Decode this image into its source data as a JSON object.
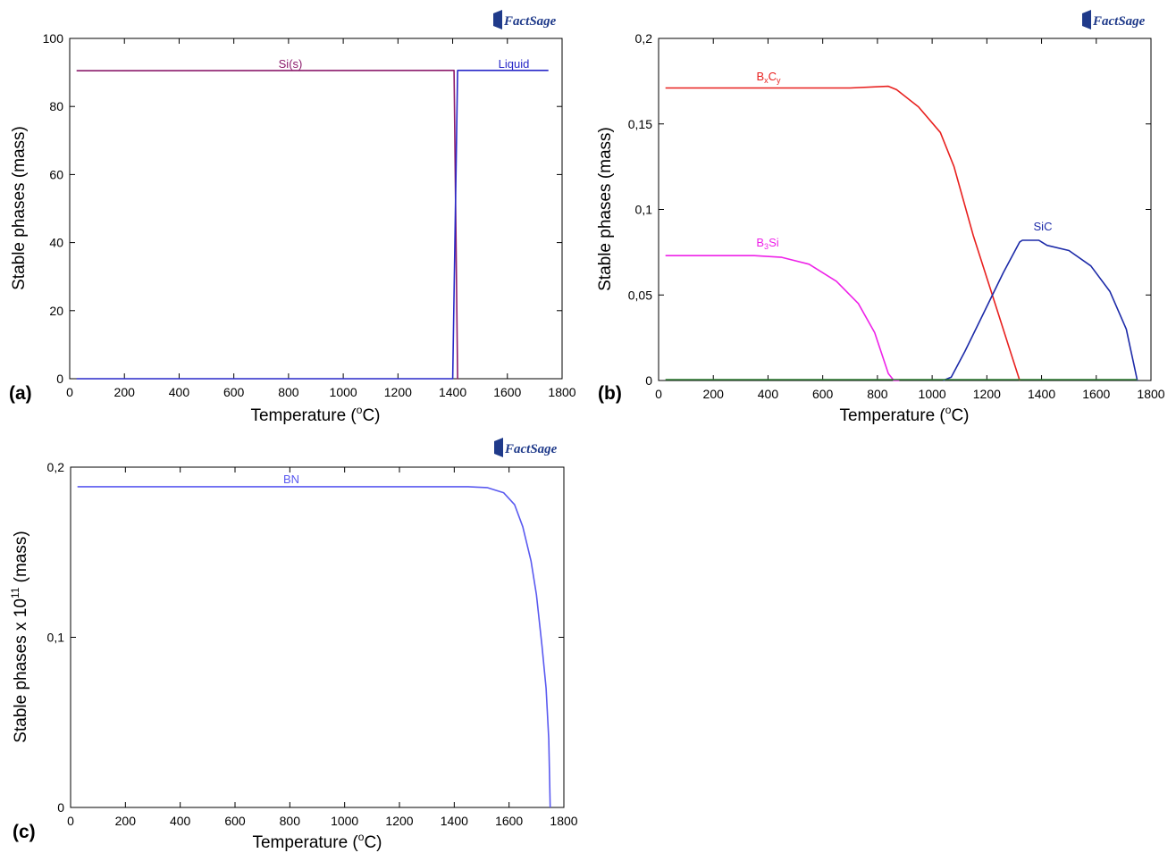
{
  "logo_text": "FactSage",
  "chart_data": [
    {
      "type": "line",
      "panel_label": "(a)",
      "xlabel": "Temperature (°C)",
      "ylabel": "Stable phases (mass)",
      "xlim": [
        0,
        1800
      ],
      "ylim": [
        0,
        100
      ],
      "xticks": [
        0,
        200,
        400,
        600,
        800,
        1000,
        1200,
        1400,
        1600,
        1800
      ],
      "yticks": [
        0,
        20,
        40,
        60,
        80,
        100
      ],
      "ytick_labels": [
        "0",
        "20",
        "40",
        "60",
        "80",
        "100"
      ],
      "grid": false,
      "series": [
        {
          "name": "Si(s)",
          "color": "#8b1a6b",
          "x": [
            25,
            1400,
            1405,
            1418,
            1420
          ],
          "y": [
            90.5,
            90.6,
            90.6,
            0,
            0
          ]
        },
        {
          "name": "Liquid",
          "color": "#2828c8",
          "x": [
            25,
            1395,
            1400,
            1418,
            1750
          ],
          "y": [
            0,
            0,
            0,
            90.6,
            90.6
          ]
        }
      ]
    },
    {
      "type": "line",
      "panel_label": "(b)",
      "xlabel": "Temperature (°C)",
      "ylabel": "Stable phases (mass)",
      "xlim": [
        0,
        1800
      ],
      "ylim": [
        0,
        0.2
      ],
      "xticks": [
        0,
        200,
        400,
        600,
        800,
        1000,
        1200,
        1400,
        1600,
        1800
      ],
      "yticks": [
        0,
        0.05,
        0.1,
        0.15,
        0.2
      ],
      "ytick_labels": [
        "0",
        "0,05",
        "0,1",
        "0,15",
        "0,2"
      ],
      "grid": false,
      "series": [
        {
          "name": "BxCy",
          "color": "#e8201e",
          "x": [
            25,
            400,
            700,
            840,
            870,
            950,
            1030,
            1080,
            1150,
            1230,
            1280,
            1320
          ],
          "y": [
            0.171,
            0.171,
            0.171,
            0.172,
            0.17,
            0.16,
            0.145,
            0.125,
            0.085,
            0.045,
            0.02,
            0.0
          ]
        },
        {
          "name": "B3Si",
          "color": "#ee22e8",
          "x": [
            25,
            350,
            450,
            550,
            650,
            730,
            790,
            840,
            860,
            880
          ],
          "y": [
            0.073,
            0.073,
            0.072,
            0.068,
            0.058,
            0.045,
            0.028,
            0.004,
            0.0,
            0.0
          ]
        },
        {
          "name": "SiC",
          "color": "#1c2aa8",
          "x": [
            1040,
            1070,
            1120,
            1190,
            1260,
            1320,
            1330,
            1390,
            1400,
            1420,
            1500,
            1580,
            1650,
            1710,
            1750
          ],
          "y": [
            0.0,
            0.002,
            0.017,
            0.04,
            0.063,
            0.081,
            0.082,
            0.082,
            0.081,
            0.079,
            0.076,
            0.067,
            0.052,
            0.03,
            0.0
          ]
        },
        {
          "name": "",
          "color": "#2e7d32",
          "x": [
            25,
            1750
          ],
          "y": [
            0.0005,
            0.0005
          ]
        }
      ],
      "labels": [
        {
          "series": "BxCy",
          "base": "B",
          "sub1": "x",
          "mid": "C",
          "sub2": "y",
          "x": 400,
          "y": 0.178
        },
        {
          "series": "B3Si",
          "base": "B",
          "sub1": "3",
          "mid": "Si",
          "sub2": "",
          "x": 420,
          "y": 0.079
        },
        {
          "series": "SiC",
          "base": "SiC",
          "sub1": "",
          "mid": "",
          "sub2": "",
          "x": 1380,
          "y": 0.087
        }
      ]
    },
    {
      "type": "line",
      "panel_label": "(c)",
      "xlabel": "Temperature (°C)",
      "ylabel": "Stable phases x 10^11 (mass)",
      "xlim": [
        0,
        1800
      ],
      "ylim": [
        0,
        0.2
      ],
      "xticks": [
        0,
        200,
        400,
        600,
        800,
        1000,
        1200,
        1400,
        1600,
        1800
      ],
      "yticks": [
        0,
        0.1,
        0.2
      ],
      "ytick_labels": [
        "0",
        "0,1",
        "0,2"
      ],
      "grid": false,
      "series": [
        {
          "name": "BN",
          "color": "#5a5af0",
          "x": [
            25,
            600,
            1200,
            1450,
            1520,
            1580,
            1620,
            1650,
            1680,
            1700,
            1720,
            1735,
            1745,
            1750
          ],
          "y": [
            0.1885,
            0.1885,
            0.1885,
            0.1885,
            0.188,
            0.185,
            0.178,
            0.165,
            0.145,
            0.125,
            0.095,
            0.07,
            0.04,
            0.0
          ]
        }
      ]
    }
  ],
  "text": {
    "a_label": "(a)",
    "b_label": "(b)",
    "c_label": "(c)",
    "si_label": "Si(s)",
    "liquid_label": "Liquid",
    "bn_label": "BN",
    "xlabel_prefix": "Temperature (",
    "xlabel_deg": "o",
    "xlabel_suffix": "C)",
    "ylabel_ab": "Stable phases (mass)",
    "ylabel_c_prefix": "Stable phases x 10",
    "ylabel_c_exp": "11",
    "ylabel_c_suffix": " (mass)"
  }
}
